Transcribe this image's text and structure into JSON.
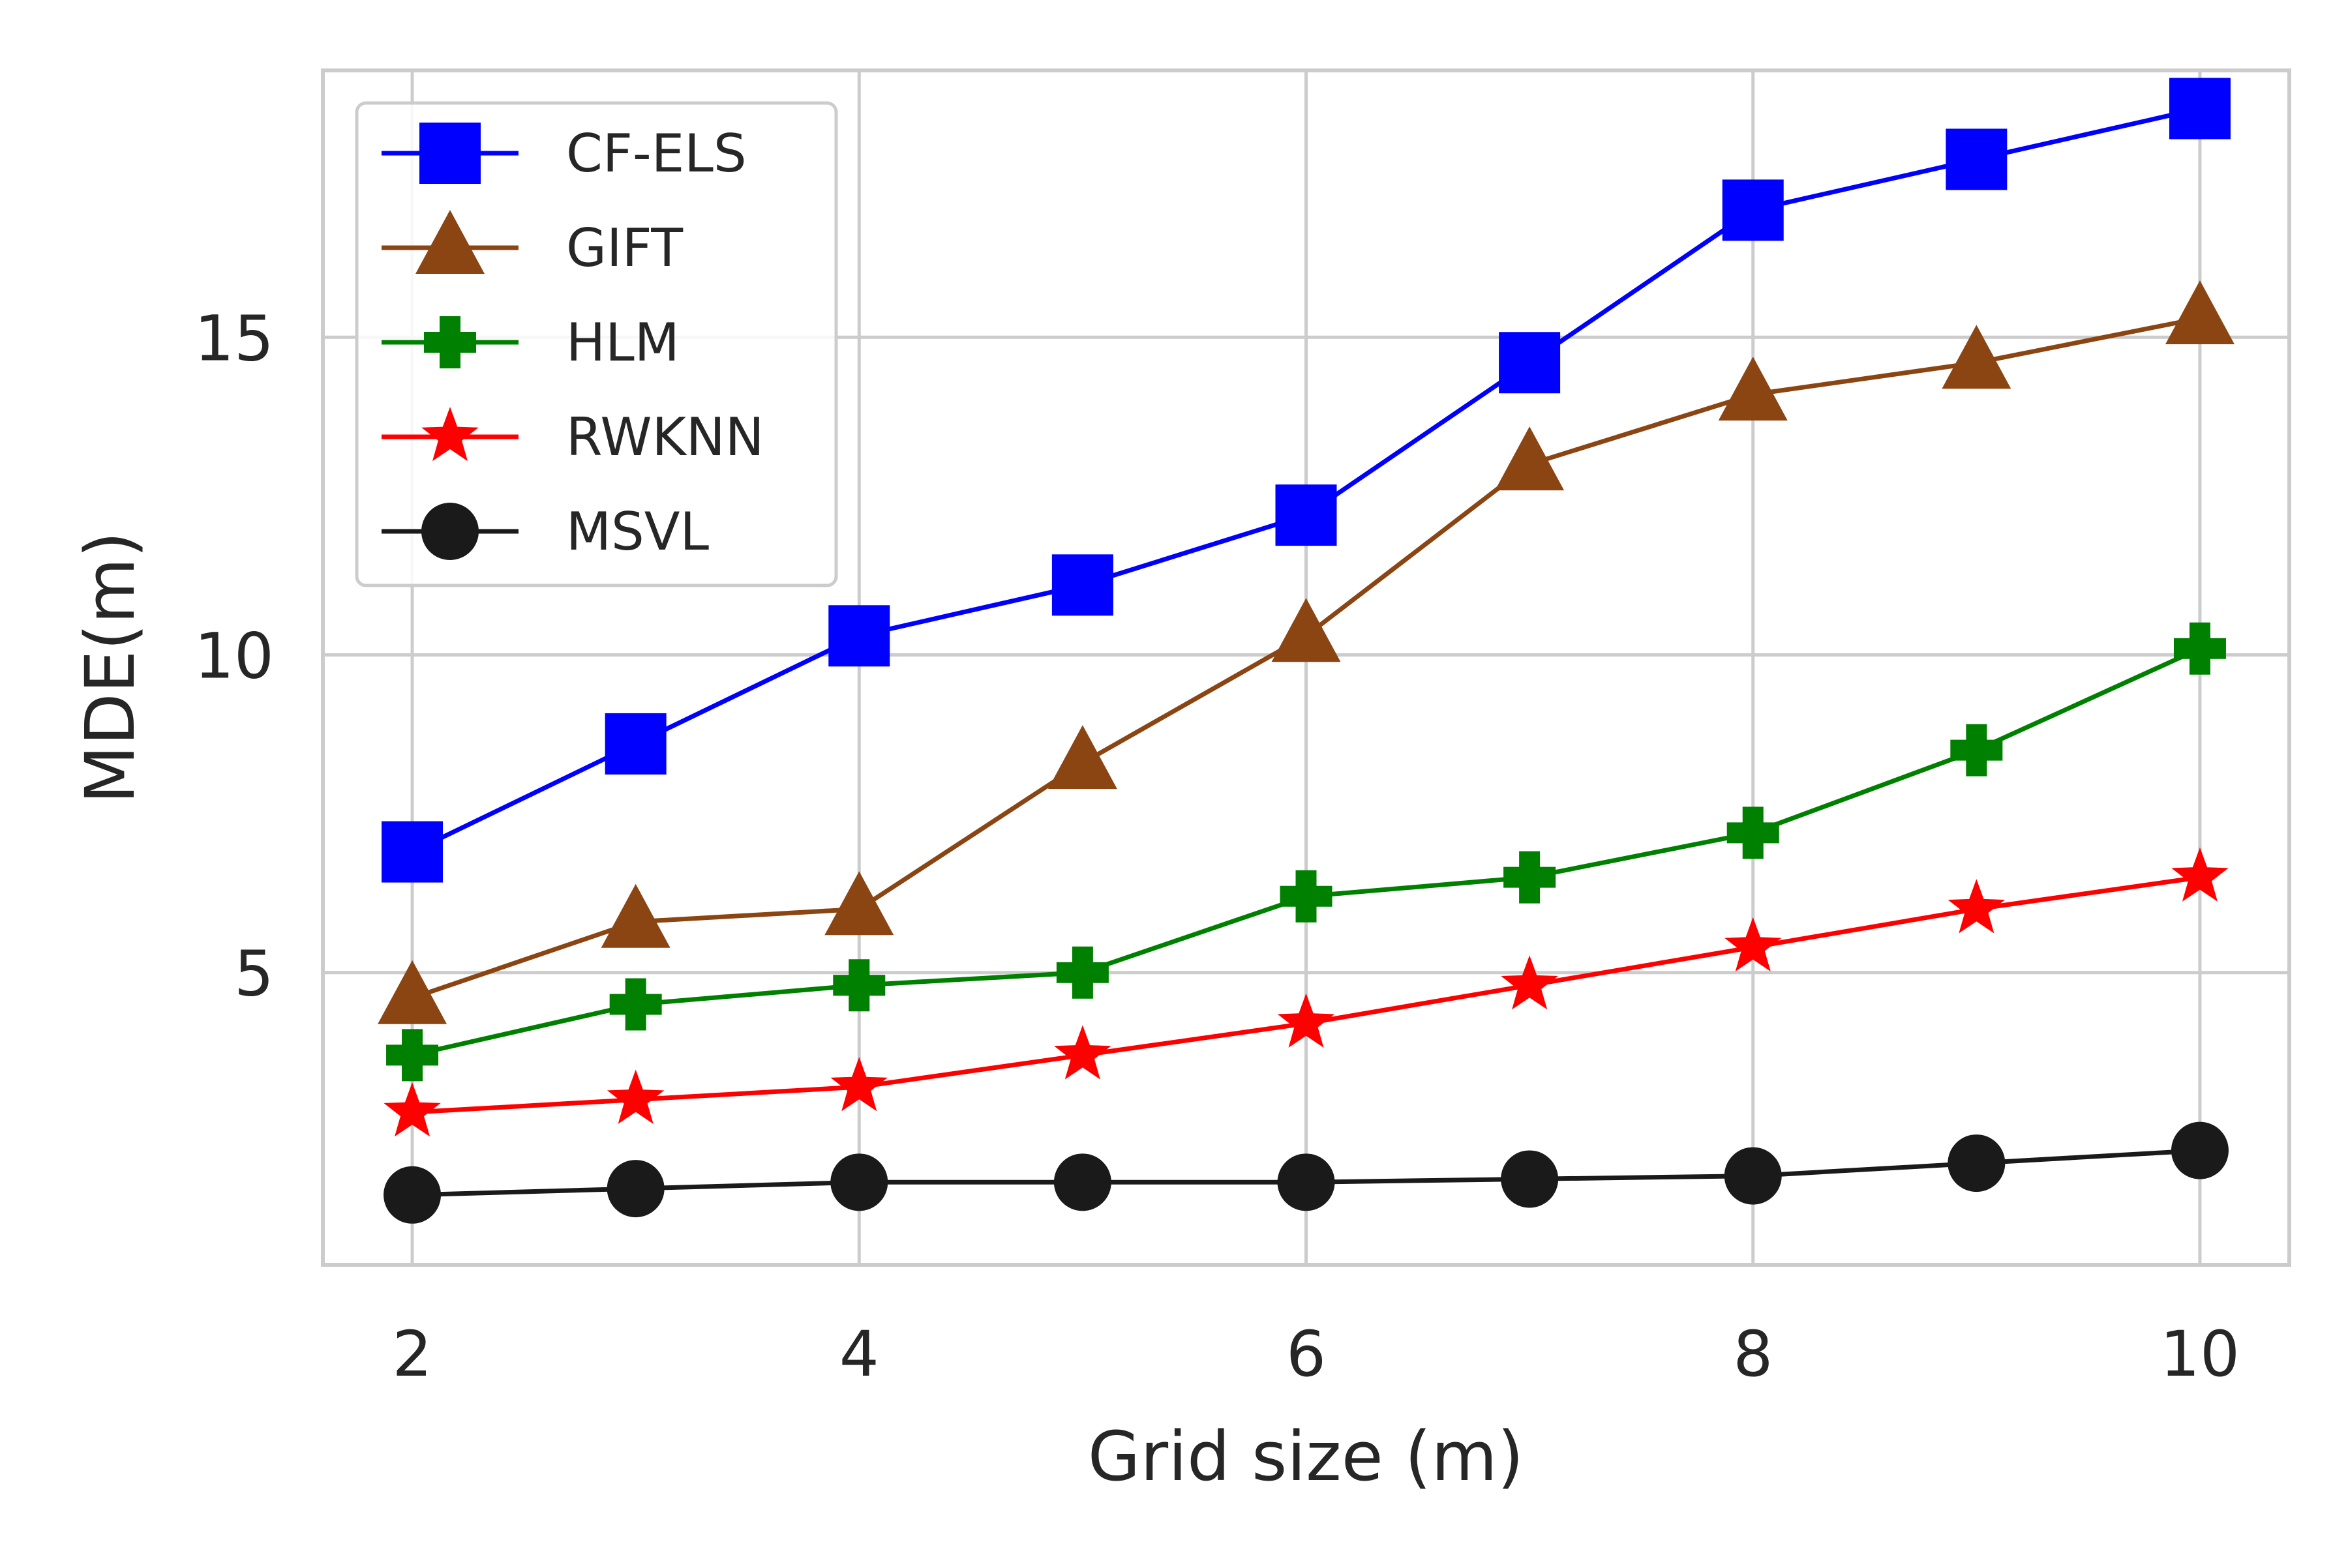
{
  "chart_data": {
    "type": "line",
    "title": "",
    "xlabel": "Grid size (m)",
    "ylabel": "MDE(m)",
    "xlim": [
      1.6,
      10.4
    ],
    "ylim": [
      0.4,
      19.2
    ],
    "xticks": [
      2,
      4,
      6,
      8,
      10
    ],
    "yticks": [
      5,
      10,
      15
    ],
    "grid": true,
    "legend_position": "top-left",
    "x": [
      2,
      3,
      4,
      5,
      6,
      7,
      8,
      9,
      10
    ],
    "series": [
      {
        "name": "CF-ELS",
        "color": "#0000ff",
        "marker": "square",
        "values": [
          6.9,
          8.6,
          10.3,
          11.1,
          12.2,
          14.6,
          17.0,
          17.8,
          18.6
        ]
      },
      {
        "name": "GIFT",
        "color": "#8b4513",
        "marker": "triangle",
        "values": [
          4.6,
          5.8,
          6.0,
          8.3,
          10.3,
          13.0,
          14.1,
          14.6,
          15.3
        ]
      },
      {
        "name": "HLM",
        "color": "#008000",
        "marker": "plus",
        "values": [
          3.7,
          4.5,
          4.8,
          5.0,
          6.2,
          6.5,
          7.2,
          8.5,
          10.1
        ]
      },
      {
        "name": "RWKNN",
        "color": "#ff0000",
        "marker": "star",
        "values": [
          2.8,
          3.0,
          3.2,
          3.7,
          4.2,
          4.8,
          5.4,
          6.0,
          6.5
        ]
      },
      {
        "name": "MSVL",
        "color": "#1a1a1a",
        "marker": "circle",
        "values": [
          1.5,
          1.6,
          1.7,
          1.7,
          1.7,
          1.75,
          1.8,
          2.0,
          2.2
        ]
      }
    ]
  }
}
